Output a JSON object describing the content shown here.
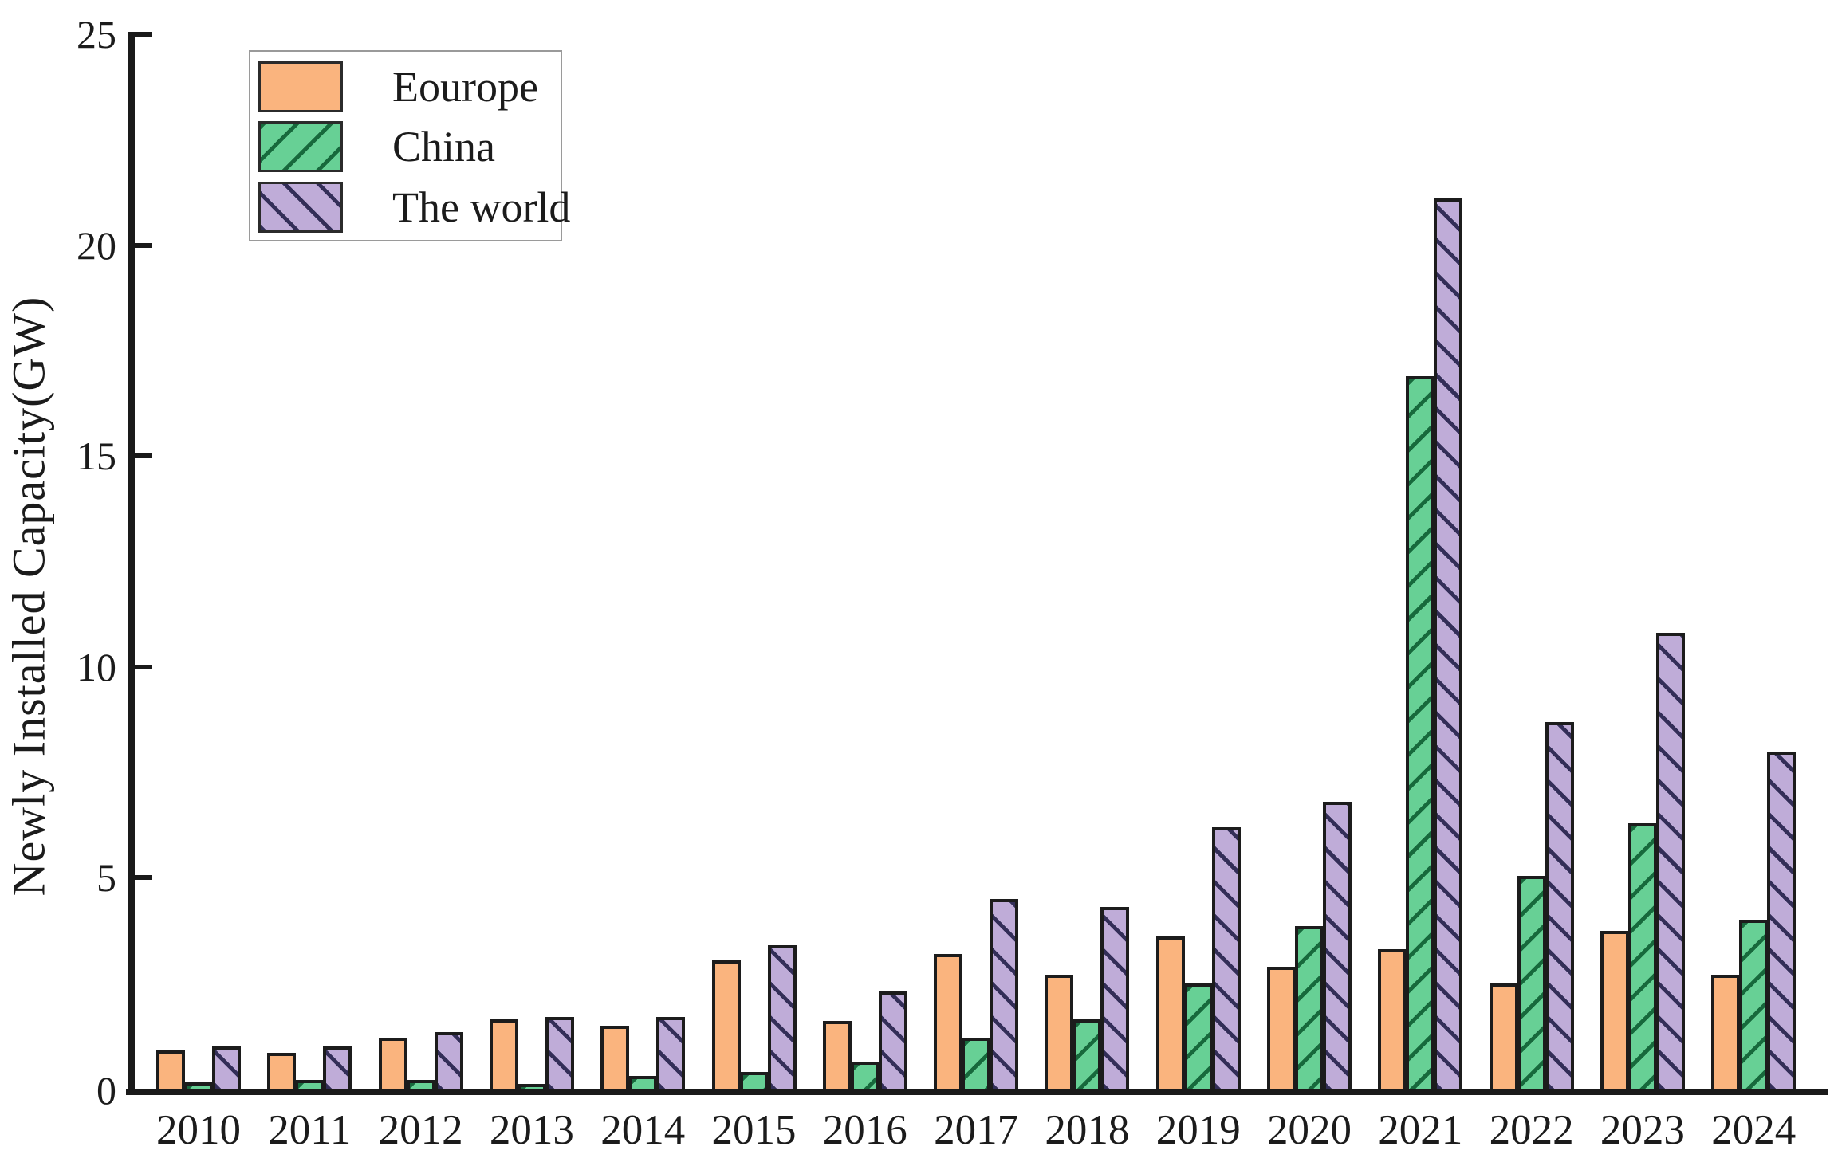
{
  "figure": {
    "background": "#ffffff",
    "border_color": "#1c1c1c",
    "axis_color": "#1a1a1a",
    "text_color": "#1b1b1b"
  },
  "chart_data": {
    "type": "bar",
    "title": "",
    "xlabel": "",
    "ylabel": "Newly Installed Capacity(GW)",
    "categories": [
      "2010",
      "2011",
      "2012",
      "2013",
      "2014",
      "2015",
      "2016",
      "2017",
      "2018",
      "2019",
      "2020",
      "2021",
      "2022",
      "2023",
      "2024"
    ],
    "series": [
      {
        "name": "Eourope",
        "key": "eourope",
        "fill": "#FAB47E",
        "hatch": "none",
        "hatch_color": "",
        "values": [
          0.9,
          0.85,
          1.2,
          1.65,
          1.5,
          3.05,
          1.6,
          3.2,
          2.7,
          3.6,
          2.9,
          3.3,
          2.5,
          3.75,
          2.7
        ]
      },
      {
        "name": "China",
        "key": "china",
        "fill": "#67D095",
        "hatch": "/",
        "hatch_color": "#17693C",
        "values": [
          0.15,
          0.2,
          0.2,
          0.1,
          0.3,
          0.4,
          0.65,
          1.2,
          1.65,
          2.5,
          3.85,
          16.9,
          5.05,
          6.3,
          4.0
        ]
      },
      {
        "name": "The world",
        "key": "the-world",
        "fill": "#BFACD8",
        "hatch": "\\",
        "hatch_color": "#332E58",
        "values": [
          1.0,
          1.0,
          1.35,
          1.7,
          1.7,
          3.4,
          2.3,
          4.5,
          4.3,
          6.2,
          6.8,
          21.1,
          8.7,
          10.8,
          8.0
        ]
      }
    ],
    "ylim": [
      0,
      25
    ],
    "yticks": [
      0,
      5,
      10,
      15,
      20,
      25
    ],
    "grid": false,
    "legend_position": "top-left",
    "legend_labels": [
      "Eourope",
      "China",
      "The world"
    ]
  }
}
